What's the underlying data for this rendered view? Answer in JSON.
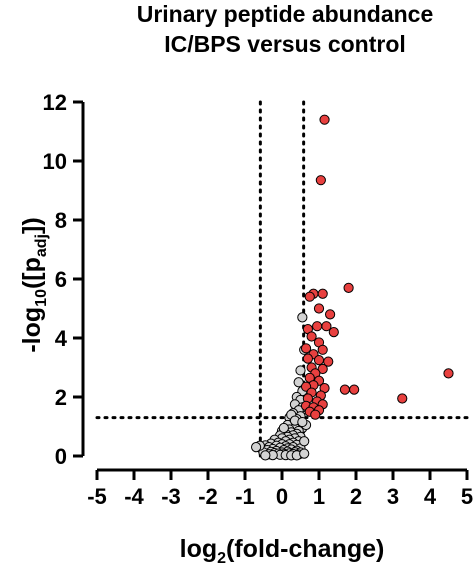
{
  "chart_data": {
    "type": "scatter",
    "title_line1": "Urinary peptide abundance",
    "title_line2": "IC/BPS versus control",
    "xlabel": {
      "prefix": "log",
      "sub": "2",
      "suffix": "(fold-change)"
    },
    "ylabel": {
      "prefix": "-log",
      "sub1": "10",
      "middle": "([p",
      "sub2": "adj",
      "suffix": "])"
    },
    "xlim": [
      -5,
      5
    ],
    "ylim": [
      0,
      12
    ],
    "x_ticks": [
      "-5",
      "-4",
      "-3",
      "-2",
      "-1",
      "0",
      "1",
      "2",
      "3",
      "4",
      "5"
    ],
    "y_ticks": [
      "0",
      "2",
      "4",
      "6",
      "8",
      "10",
      "12"
    ],
    "threshold_lines": {
      "x": [
        -0.585,
        0.585
      ],
      "y": 1.3
    },
    "colors": {
      "significant": "#e8403f",
      "nonsignificant": "#d3d3d3",
      "outline": "#000000"
    },
    "series": [
      {
        "kind": "significant",
        "points": [
          [
            1.15,
            11.4
          ],
          [
            1.05,
            9.35
          ],
          [
            1.8,
            5.7
          ],
          [
            0.85,
            5.5
          ],
          [
            1.1,
            5.5
          ],
          [
            0.75,
            5.4
          ],
          [
            1.0,
            5.0
          ],
          [
            1.3,
            4.8
          ],
          [
            1.2,
            4.4
          ],
          [
            0.95,
            4.4
          ],
          [
            0.7,
            4.3
          ],
          [
            1.4,
            4.2
          ],
          [
            0.8,
            4.05
          ],
          [
            1.0,
            3.85
          ],
          [
            0.65,
            3.65
          ],
          [
            1.1,
            3.6
          ],
          [
            0.85,
            3.45
          ],
          [
            0.7,
            3.3
          ],
          [
            1.0,
            3.25
          ],
          [
            1.25,
            3.2
          ],
          [
            0.8,
            3.0
          ],
          [
            1.1,
            2.95
          ],
          [
            0.9,
            2.8
          ],
          [
            0.75,
            2.65
          ],
          [
            1.0,
            2.55
          ],
          [
            0.85,
            2.4
          ],
          [
            0.65,
            2.35
          ],
          [
            1.15,
            2.3
          ],
          [
            1.7,
            2.25
          ],
          [
            1.95,
            2.25
          ],
          [
            0.8,
            2.15
          ],
          [
            1.05,
            2.05
          ],
          [
            0.7,
            1.95
          ],
          [
            0.95,
            1.85
          ],
          [
            1.1,
            1.75
          ],
          [
            0.65,
            1.7
          ],
          [
            0.85,
            1.65
          ],
          [
            1.0,
            1.55
          ],
          [
            0.75,
            1.5
          ],
          [
            0.9,
            1.4
          ],
          [
            4.5,
            2.8
          ],
          [
            3.25,
            1.95
          ]
        ]
      },
      {
        "kind": "nonsignificant",
        "points": [
          [
            0.55,
            4.7
          ],
          [
            0.6,
            3.6
          ],
          [
            0.5,
            2.9
          ],
          [
            0.45,
            2.5
          ],
          [
            0.55,
            2.2
          ],
          [
            0.4,
            2.0
          ],
          [
            0.5,
            1.9
          ],
          [
            0.35,
            1.75
          ],
          [
            0.55,
            1.65
          ],
          [
            0.45,
            1.55
          ],
          [
            0.3,
            1.45
          ],
          [
            0.5,
            1.35
          ],
          [
            0.2,
            1.3
          ],
          [
            0.4,
            1.25
          ],
          [
            0.3,
            1.1
          ],
          [
            0.45,
            1.05
          ],
          [
            0.15,
            1.05
          ],
          [
            0.55,
            0.95
          ],
          [
            0.35,
            0.95
          ],
          [
            0.2,
            0.9
          ],
          [
            0.0,
            0.85
          ],
          [
            0.45,
            0.85
          ],
          [
            0.25,
            0.8
          ],
          [
            0.1,
            0.75
          ],
          [
            0.4,
            0.75
          ],
          [
            0.3,
            0.7
          ],
          [
            -0.05,
            0.7
          ],
          [
            0.15,
            0.65
          ],
          [
            0.5,
            0.65
          ],
          [
            0.35,
            0.6
          ],
          [
            0.0,
            0.6
          ],
          [
            -0.2,
            0.55
          ],
          [
            0.2,
            0.55
          ],
          [
            0.45,
            0.5
          ],
          [
            0.1,
            0.5
          ],
          [
            -0.1,
            0.45
          ],
          [
            0.3,
            0.45
          ],
          [
            -0.3,
            0.42
          ],
          [
            0.0,
            0.4
          ],
          [
            0.2,
            0.4
          ],
          [
            0.4,
            0.38
          ],
          [
            -0.45,
            0.36
          ],
          [
            -0.15,
            0.35
          ],
          [
            0.1,
            0.33
          ],
          [
            0.3,
            0.3
          ],
          [
            -0.35,
            0.3
          ],
          [
            -0.05,
            0.28
          ],
          [
            0.15,
            0.26
          ],
          [
            0.5,
            0.26
          ],
          [
            -0.55,
            0.25
          ],
          [
            -0.25,
            0.24
          ],
          [
            0.25,
            0.22
          ],
          [
            0.05,
            0.2
          ],
          [
            -0.4,
            0.2
          ],
          [
            0.4,
            0.18
          ],
          [
            -0.15,
            0.17
          ],
          [
            0.15,
            0.15
          ],
          [
            -0.3,
            0.14
          ],
          [
            0.35,
            0.13
          ],
          [
            0.0,
            0.12
          ],
          [
            -0.5,
            0.12
          ],
          [
            0.5,
            0.12
          ],
          [
            -0.2,
            0.1
          ],
          [
            0.2,
            0.09
          ],
          [
            -0.1,
            0.08
          ],
          [
            0.3,
            0.07
          ],
          [
            0.05,
            0.06
          ],
          [
            -0.35,
            0.06
          ],
          [
            0.45,
            0.05
          ],
          [
            -0.05,
            0.04
          ],
          [
            0.1,
            0.03
          ],
          [
            -0.25,
            0.03
          ],
          [
            0.25,
            0.02
          ],
          [
            0.4,
            0.02
          ],
          [
            -0.45,
            0.02
          ],
          [
            0.6,
            0.08
          ],
          [
            0.6,
            0.5
          ],
          [
            0.65,
            1.05
          ],
          [
            -0.6,
            0.35
          ],
          [
            -0.7,
            0.3
          ],
          [
            0.25,
            1.4
          ],
          [
            0.35,
            1.2
          ],
          [
            0.55,
            1.15
          ],
          [
            0.05,
            0.95
          ]
        ]
      }
    ]
  }
}
